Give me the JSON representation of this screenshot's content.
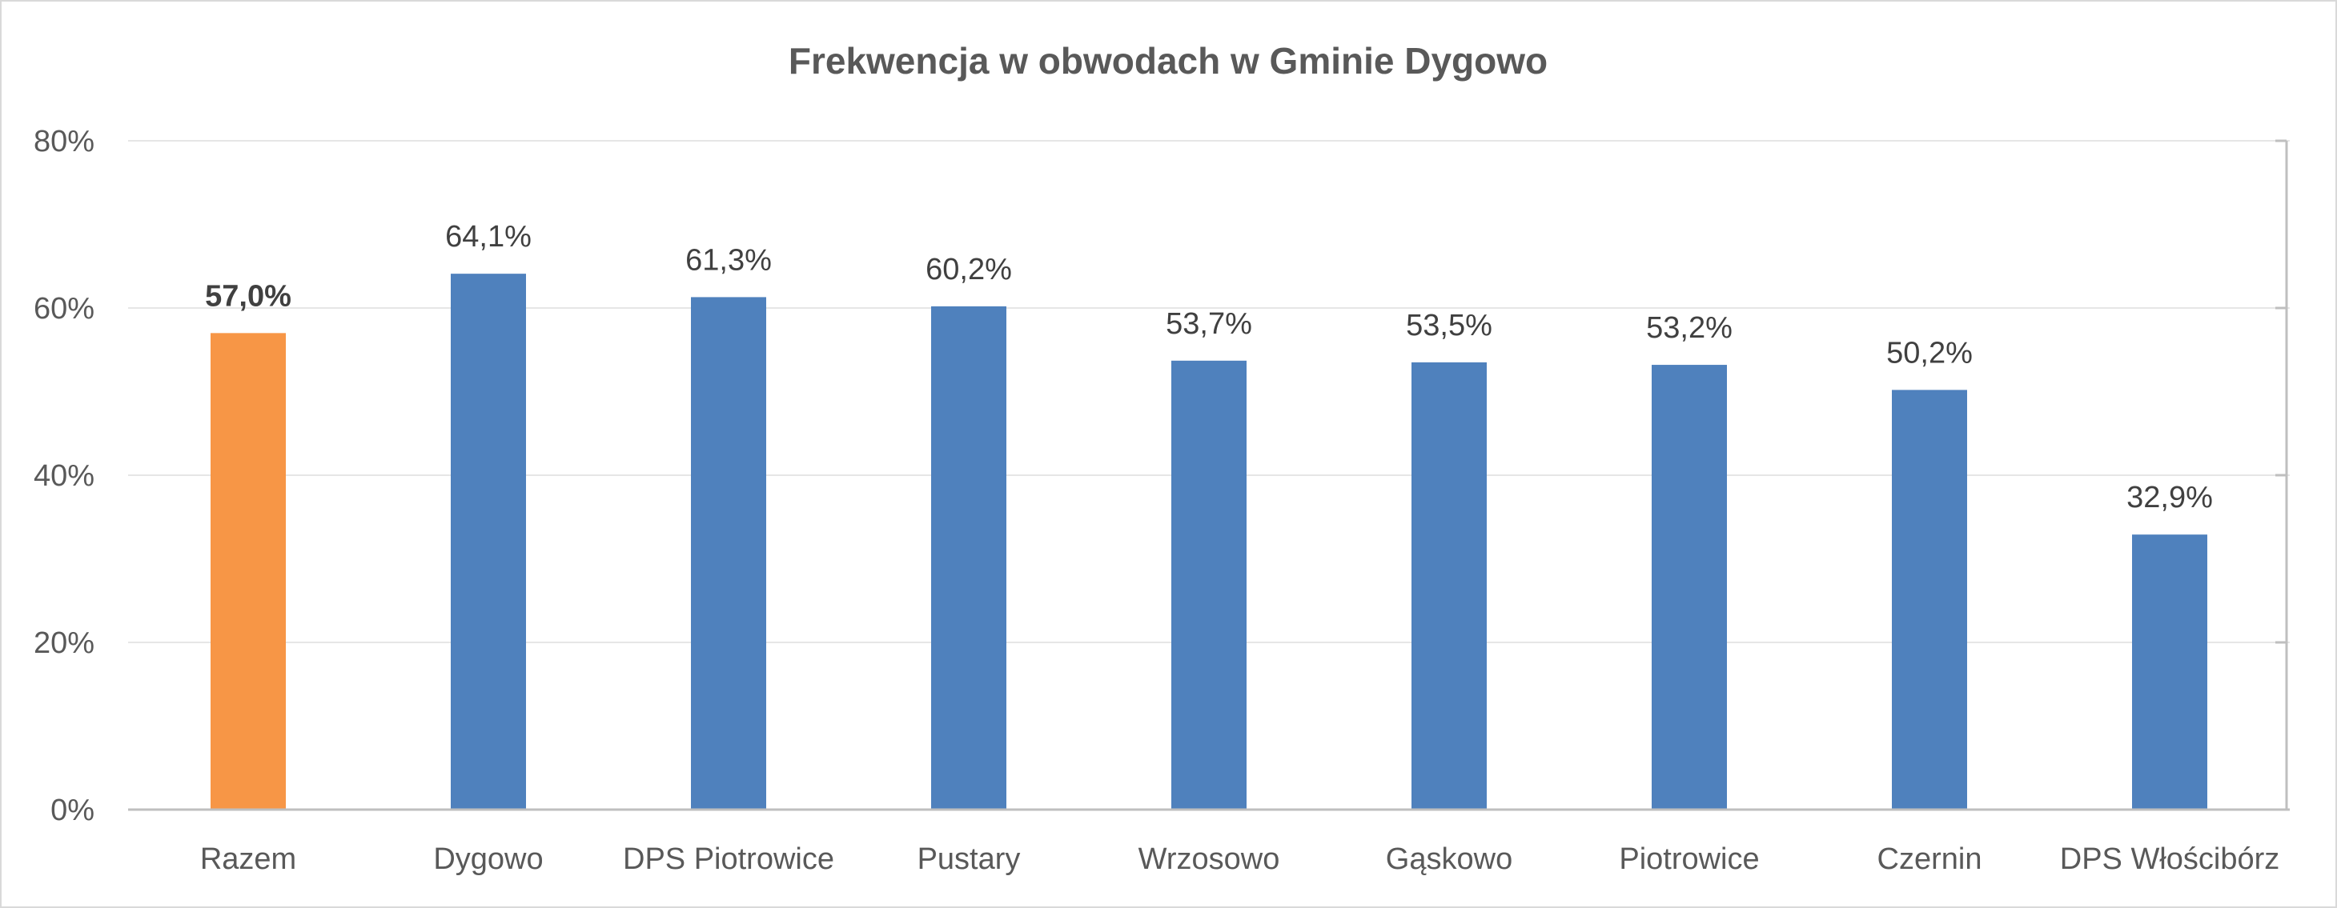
{
  "chart_data": {
    "type": "bar",
    "title": "Frekwencja w obwodach w Gminie Dygowo",
    "xlabel": "",
    "ylabel": "",
    "categories": [
      "Razem",
      "Dygowo",
      "DPS Piotrowice",
      "Pustary",
      "Wrzosowo",
      "Gąskowo",
      "Piotrowice",
      "Czernin",
      "DPS Włościbórz"
    ],
    "values": [
      57.0,
      64.1,
      61.3,
      60.2,
      53.7,
      53.5,
      53.2,
      50.2,
      32.9
    ],
    "data_labels": [
      "57,0%",
      "64,1%",
      "61,3%",
      "60,2%",
      "53,7%",
      "53,5%",
      "53,2%",
      "50,2%",
      "32,9%"
    ],
    "highlight_index": 0,
    "ylim": [
      0,
      80
    ],
    "yticks": [
      0,
      20,
      40,
      60,
      80
    ],
    "ytick_labels": [
      "0%",
      "20%",
      "40%",
      "60%",
      "80%"
    ],
    "grid": true,
    "legend": "none",
    "colors": {
      "highlight": "#F79646",
      "bar": "#4F81BD",
      "grid": "#e6e6e6",
      "axis": "#bfbfbf"
    }
  }
}
